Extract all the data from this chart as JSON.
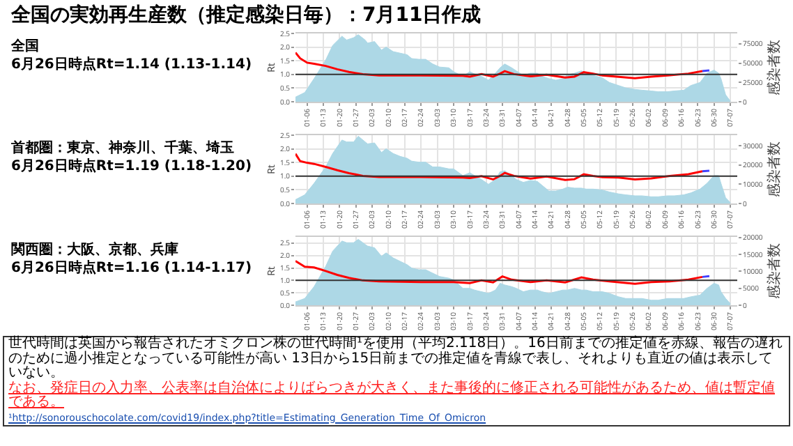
{
  "chart_data": [
    {
      "type": "area",
      "title": "全国の実効再生産数（推定感染日毎）：7月11日作成",
      "subtitle": "全国\n6月26日時点Rt=1.14 (1.13-1.14)",
      "ylabel": "Rt",
      "y2label": "感染者数",
      "grid": true,
      "xlim": [
        "--01-01",
        "--07-10"
      ],
      "xticks": [
        {
          "value": "--01-06",
          "label": "01-06"
        },
        {
          "value": "--01-13",
          "label": "01-13"
        },
        {
          "value": "--01-20",
          "label": "01-20"
        },
        {
          "value": "--01-27",
          "label": "01-27"
        },
        {
          "value": "--02-03",
          "label": "02-03"
        },
        {
          "value": "--02-10",
          "label": "02-10"
        },
        {
          "value": "--02-17",
          "label": "02-17"
        },
        {
          "value": "--02-24",
          "label": "02-24"
        },
        {
          "value": "--03-03",
          "label": "03-03"
        },
        {
          "value": "--03-10",
          "label": "03-10"
        },
        {
          "value": "--03-17",
          "label": "03-17"
        },
        {
          "value": "--03-24",
          "label": "03-24"
        },
        {
          "value": "--03-31",
          "label": "03-31"
        },
        {
          "value": "--04-07",
          "label": "04-07"
        },
        {
          "value": "--04-14",
          "label": "04-14"
        },
        {
          "value": "--04-21",
          "label": "04-21"
        },
        {
          "value": "--04-28",
          "label": "04-28"
        },
        {
          "value": "--05-05",
          "label": "05-05"
        },
        {
          "value": "--05-12",
          "label": "05-12"
        },
        {
          "value": "--05-19",
          "label": "05-19"
        },
        {
          "value": "--05-26",
          "label": "05-26"
        },
        {
          "value": "--06-02",
          "label": "06-02"
        },
        {
          "value": "--06-09",
          "label": "06-09"
        },
        {
          "value": "--06-16",
          "label": "06-16"
        },
        {
          "value": "--06-23",
          "label": "06-23"
        },
        {
          "value": "--06-30",
          "label": "06-30"
        },
        {
          "value": "--07-07",
          "label": "07-07"
        }
      ],
      "ylim": [
        0,
        2.5
      ],
      "yticks": [
        {
          "value": 0,
          "label": "0.0"
        },
        {
          "value": 0.5,
          "label": "0.5"
        },
        {
          "value": 1,
          "label": "1.0"
        },
        {
          "value": 1.5,
          "label": "1.5"
        },
        {
          "value": 2,
          "label": "2.0"
        },
        {
          "value": 2.5,
          "label": "2.5"
        }
      ],
      "y2lim": [
        0,
        88500
      ],
      "y2ticks": [
        0,
        25000,
        50000,
        75000
      ],
      "ref_lines": [
        {
          "axis": "y",
          "value": 1,
          "color": "#333333"
        }
      ],
      "series": [
        {
          "type": "area",
          "axis": "y2",
          "color": "#add8e6",
          "x": [
            "--01-01",
            "--01-05",
            "--01-09",
            "--01-14",
            "--01-17",
            "--01-21",
            "--01-23",
            "--01-26",
            "--01-28",
            "--01-31",
            "--02-01",
            "--02-04",
            "--02-07",
            "--02-09",
            "--02-12",
            "--02-15",
            "--02-18",
            "--02-20",
            "--02-23",
            "--02-26",
            "--03-01",
            "--03-04",
            "--03-08",
            "--03-10",
            "--03-14",
            "--03-17",
            "--03-19",
            "--03-22",
            "--03-25",
            "--03-28",
            "--03-30",
            "--04-01",
            "--04-04",
            "--04-06",
            "--04-09",
            "--04-12",
            "--04-15",
            "--04-17",
            "--04-20",
            "--04-23",
            "--04-26",
            "--04-28",
            "--05-01",
            "--05-04",
            "--05-06",
            "--05-09",
            "--05-13",
            "--05-16",
            "--05-20",
            "--05-23",
            "--05-27",
            "--05-30",
            "--06-03",
            "--06-06",
            "--06-10",
            "--06-13",
            "--06-17",
            "--06-20",
            "--06-24",
            "--06-27",
            "--06-30",
            "--07-02",
            "--07-03",
            "--07-05",
            "--07-07"
          ],
          "values": [
            6000,
            12000,
            30000,
            54000,
            73000,
            85000,
            80000,
            83000,
            87000,
            80000,
            76000,
            78000,
            67000,
            71000,
            65000,
            63000,
            61000,
            56000,
            55000,
            55000,
            49000,
            45000,
            44000,
            39000,
            33000,
            39000,
            36000,
            33000,
            28000,
            37000,
            44000,
            49000,
            44000,
            40000,
            34000,
            37000,
            37000,
            33000,
            30000,
            28000,
            30000,
            35000,
            37000,
            40000,
            37000,
            34000,
            31000,
            25000,
            21000,
            18000,
            16000,
            15000,
            14000,
            13000,
            13000,
            14000,
            15000,
            21000,
            25000,
            37000,
            41000,
            37000,
            30000,
            9000,
            1000
          ]
        },
        {
          "type": "line",
          "axis": "y",
          "color": "#ff0000",
          "x": [
            "--01-01",
            "--01-03",
            "--01-06",
            "--01-09",
            "--01-14",
            "--01-19",
            "--01-24",
            "--01-30",
            "--02-06",
            "--02-24",
            "--03-14",
            "--03-17",
            "--03-22",
            "--03-27",
            "--03-30",
            "--04-01",
            "--04-05",
            "--04-12",
            "--04-19",
            "--04-27",
            "--05-01",
            "--05-05",
            "--05-09",
            "--05-13",
            "--05-20",
            "--05-27",
            "--06-03",
            "--06-11",
            "--06-19",
            "--06-25"
          ],
          "values": [
            1.8,
            1.59,
            1.43,
            1.39,
            1.31,
            1.19,
            1.09,
            1.01,
            0.96,
            0.96,
            0.95,
            0.92,
            1.01,
            0.92,
            1.03,
            1.12,
            1.01,
            0.93,
            0.99,
            0.89,
            0.92,
            1.08,
            1.03,
            0.96,
            0.91,
            0.86,
            0.92,
            0.97,
            1.03,
            1.12
          ]
        },
        {
          "type": "line",
          "axis": "y",
          "color": "#4040ff",
          "x": [
            "--06-25",
            "--06-28"
          ],
          "values": [
            1.12,
            1.15
          ]
        }
      ]
    },
    {
      "type": "area",
      "subtitle": "首都圏：東京、神奈川、千葉、埼玉\n6月26日時点Rt=1.19 (1.18-1.20)",
      "ylabel": "Rt",
      "y2label": "感染者数",
      "grid": true,
      "xlim": [
        "--01-01",
        "--07-10"
      ],
      "xticks": [
        {
          "value": "--01-06",
          "label": "01-06"
        },
        {
          "value": "--01-13",
          "label": "01-13"
        },
        {
          "value": "--01-20",
          "label": "01-20"
        },
        {
          "value": "--01-27",
          "label": "01-27"
        },
        {
          "value": "--02-03",
          "label": "02-03"
        },
        {
          "value": "--02-10",
          "label": "02-10"
        },
        {
          "value": "--02-17",
          "label": "02-17"
        },
        {
          "value": "--02-24",
          "label": "02-24"
        },
        {
          "value": "--03-03",
          "label": "03-03"
        },
        {
          "value": "--03-10",
          "label": "03-10"
        },
        {
          "value": "--03-17",
          "label": "03-17"
        },
        {
          "value": "--03-24",
          "label": "03-24"
        },
        {
          "value": "--03-31",
          "label": "03-31"
        },
        {
          "value": "--04-07",
          "label": "04-07"
        },
        {
          "value": "--04-14",
          "label": "04-14"
        },
        {
          "value": "--04-21",
          "label": "04-21"
        },
        {
          "value": "--04-28",
          "label": "04-28"
        },
        {
          "value": "--05-05",
          "label": "05-05"
        },
        {
          "value": "--05-12",
          "label": "05-12"
        },
        {
          "value": "--05-19",
          "label": "05-19"
        },
        {
          "value": "--05-26",
          "label": "05-26"
        },
        {
          "value": "--06-02",
          "label": "06-02"
        },
        {
          "value": "--06-09",
          "label": "06-09"
        },
        {
          "value": "--06-16",
          "label": "06-16"
        },
        {
          "value": "--06-23",
          "label": "06-23"
        },
        {
          "value": "--06-30",
          "label": "06-30"
        },
        {
          "value": "--07-07",
          "label": "07-07"
        }
      ],
      "ylim": [
        0,
        2.5
      ],
      "yticks": [
        {
          "value": 0,
          "label": "0.0"
        },
        {
          "value": 0.5,
          "label": "0.5"
        },
        {
          "value": 1,
          "label": "1.0"
        },
        {
          "value": 1.5,
          "label": "1.5"
        },
        {
          "value": 2,
          "label": "2.0"
        },
        {
          "value": 2.5,
          "label": "2.5"
        }
      ],
      "y2lim": [
        0,
        35500
      ],
      "y2ticks": [
        0,
        10000,
        20000,
        30000
      ],
      "ref_lines": [
        {
          "axis": "y",
          "value": 1,
          "color": "#333333"
        }
      ],
      "series": [
        {
          "type": "area",
          "axis": "y2",
          "color": "#add8e6",
          "x": [
            "--01-01",
            "--01-05",
            "--01-09",
            "--01-14",
            "--01-17",
            "--01-21",
            "--01-23",
            "--01-26",
            "--01-28",
            "--01-31",
            "--02-01",
            "--02-04",
            "--02-07",
            "--02-09",
            "--02-12",
            "--02-15",
            "--02-18",
            "--02-20",
            "--02-23",
            "--02-26",
            "--03-01",
            "--03-04",
            "--03-08",
            "--03-10",
            "--03-14",
            "--03-17",
            "--03-19",
            "--03-22",
            "--03-25",
            "--03-28",
            "--03-30",
            "--04-01",
            "--04-04",
            "--04-06",
            "--04-09",
            "--04-12",
            "--04-15",
            "--04-17",
            "--04-20",
            "--04-23",
            "--04-26",
            "--04-28",
            "--05-01",
            "--05-04",
            "--05-06",
            "--05-09",
            "--05-13",
            "--05-16",
            "--05-20",
            "--05-23",
            "--05-27",
            "--05-30",
            "--06-03",
            "--06-06",
            "--06-10",
            "--06-13",
            "--06-17",
            "--06-20",
            "--06-24",
            "--06-27",
            "--06-30",
            "--07-02",
            "--07-03",
            "--07-05",
            "--07-07"
          ],
          "values": [
            2000,
            4500,
            10500,
            19000,
            26000,
            33000,
            32000,
            32000,
            35000,
            32000,
            31000,
            31500,
            26500,
            28500,
            26000,
            24500,
            23500,
            22000,
            21500,
            21500,
            19000,
            19000,
            18000,
            18000,
            14500,
            16000,
            14500,
            12500,
            10000,
            12500,
            16500,
            17000,
            14500,
            12500,
            11000,
            12000,
            11500,
            9500,
            6500,
            6500,
            7500,
            8500,
            8000,
            8000,
            7500,
            7500,
            7000,
            6000,
            5000,
            4500,
            4000,
            4000,
            3500,
            3500,
            4000,
            4000,
            4500,
            5500,
            7500,
            10500,
            14500,
            14500,
            10500,
            3000,
            500
          ]
        },
        {
          "type": "line",
          "axis": "y",
          "color": "#ff0000",
          "x": [
            "--01-01",
            "--01-03",
            "--01-06",
            "--01-09",
            "--01-14",
            "--01-19",
            "--01-24",
            "--01-30",
            "--02-06",
            "--02-24",
            "--03-14",
            "--03-17",
            "--03-22",
            "--03-27",
            "--03-30",
            "--04-01",
            "--04-05",
            "--04-12",
            "--04-19",
            "--04-27",
            "--05-01",
            "--05-05",
            "--05-09",
            "--05-13",
            "--05-20",
            "--05-27",
            "--06-03",
            "--06-11",
            "--06-19",
            "--06-25"
          ],
          "values": [
            1.82,
            1.55,
            1.49,
            1.45,
            1.34,
            1.22,
            1.11,
            1.01,
            0.97,
            0.97,
            0.95,
            0.93,
            1.0,
            0.88,
            1.01,
            1.12,
            1.01,
            0.91,
            0.99,
            0.86,
            0.89,
            1.07,
            1.01,
            0.96,
            0.95,
            0.88,
            0.92,
            1.01,
            1.07,
            1.18
          ]
        },
        {
          "type": "line",
          "axis": "y",
          "color": "#4040ff",
          "x": [
            "--06-25",
            "--06-28"
          ],
          "values": [
            1.18,
            1.2
          ]
        }
      ]
    },
    {
      "type": "area",
      "subtitle": "関西圏：大阪、京都、兵庫\n6月26日時点Rt=1.16 (1.14-1.17)",
      "ylabel": "Rt",
      "y2label": "感染者数",
      "grid": true,
      "xlim": [
        "--01-01",
        "--07-10"
      ],
      "xticks": [
        {
          "value": "--01-06",
          "label": "01-06"
        },
        {
          "value": "--01-13",
          "label": "01-13"
        },
        {
          "value": "--01-20",
          "label": "01-20"
        },
        {
          "value": "--01-27",
          "label": "01-27"
        },
        {
          "value": "--02-03",
          "label": "02-03"
        },
        {
          "value": "--02-10",
          "label": "02-10"
        },
        {
          "value": "--02-17",
          "label": "02-17"
        },
        {
          "value": "--02-24",
          "label": "02-24"
        },
        {
          "value": "--03-03",
          "label": "03-03"
        },
        {
          "value": "--03-10",
          "label": "03-10"
        },
        {
          "value": "--03-17",
          "label": "03-17"
        },
        {
          "value": "--03-24",
          "label": "03-24"
        },
        {
          "value": "--03-31",
          "label": "03-31"
        },
        {
          "value": "--04-07",
          "label": "04-07"
        },
        {
          "value": "--04-14",
          "label": "04-14"
        },
        {
          "value": "--04-21",
          "label": "04-21"
        },
        {
          "value": "--04-28",
          "label": "04-28"
        },
        {
          "value": "--05-05",
          "label": "05-05"
        },
        {
          "value": "--05-12",
          "label": "05-12"
        },
        {
          "value": "--05-19",
          "label": "05-19"
        },
        {
          "value": "--05-26",
          "label": "05-26"
        },
        {
          "value": "--06-02",
          "label": "06-02"
        },
        {
          "value": "--06-09",
          "label": "06-09"
        },
        {
          "value": "--06-16",
          "label": "06-16"
        },
        {
          "value": "--06-23",
          "label": "06-23"
        },
        {
          "value": "--06-30",
          "label": "06-30"
        },
        {
          "value": "--07-07",
          "label": "07-07"
        }
      ],
      "ylim": [
        0,
        2.75
      ],
      "yticks": [
        {
          "value": 0,
          "label": "0.0"
        },
        {
          "value": 0.5,
          "label": "0.5"
        },
        {
          "value": 1,
          "label": "1.0"
        },
        {
          "value": 1.5,
          "label": "1.5"
        },
        {
          "value": 2,
          "label": "2.0"
        },
        {
          "value": 2.5,
          "label": "2.5"
        }
      ],
      "y2lim": [
        0,
        20200
      ],
      "y2ticks": [
        0,
        5000,
        10000,
        15000,
        20000
      ],
      "ref_lines": [
        {
          "axis": "y",
          "value": 1,
          "color": "#333333"
        }
      ],
      "series": [
        {
          "type": "area",
          "axis": "y2",
          "color": "#add8e6",
          "x": [
            "--01-01",
            "--01-05",
            "--01-09",
            "--01-14",
            "--01-17",
            "--01-21",
            "--01-23",
            "--01-26",
            "--01-28",
            "--01-31",
            "--02-01",
            "--02-04",
            "--02-07",
            "--02-09",
            "--02-12",
            "--02-15",
            "--02-18",
            "--02-20",
            "--02-23",
            "--02-26",
            "--03-01",
            "--03-04",
            "--03-08",
            "--03-10",
            "--03-14",
            "--03-17",
            "--03-19",
            "--03-22",
            "--03-25",
            "--03-28",
            "--03-30",
            "--04-01",
            "--04-04",
            "--04-06",
            "--04-09",
            "--04-12",
            "--04-15",
            "--04-17",
            "--04-20",
            "--04-23",
            "--04-26",
            "--04-28",
            "--05-01",
            "--05-04",
            "--05-06",
            "--05-09",
            "--05-13",
            "--05-16",
            "--05-20",
            "--05-23",
            "--05-27",
            "--05-30",
            "--06-03",
            "--06-06",
            "--06-10",
            "--06-13",
            "--06-17",
            "--06-20",
            "--06-24",
            "--06-27",
            "--06-30",
            "--07-02",
            "--07-03",
            "--07-05",
            "--07-07"
          ],
          "values": [
            1000,
            2000,
            5500,
            11500,
            16000,
            19000,
            18500,
            18500,
            19500,
            18000,
            17500,
            17000,
            14500,
            15500,
            14000,
            13000,
            12000,
            11000,
            10500,
            10500,
            9500,
            8500,
            8000,
            7500,
            5000,
            5000,
            4500,
            4000,
            3500,
            4500,
            6500,
            6000,
            5500,
            5000,
            4000,
            4500,
            4500,
            4000,
            3500,
            4000,
            4500,
            4500,
            5000,
            4500,
            4500,
            4000,
            4000,
            3500,
            2500,
            2000,
            2000,
            2000,
            1500,
            1500,
            2000,
            2000,
            2000,
            2500,
            3000,
            5000,
            6500,
            6000,
            4000,
            2000,
            500
          ]
        },
        {
          "type": "line",
          "axis": "y",
          "color": "#ff0000",
          "x": [
            "--01-01",
            "--01-05",
            "--01-09",
            "--01-14",
            "--01-19",
            "--01-24",
            "--01-30",
            "--02-06",
            "--02-24",
            "--03-10",
            "--03-17",
            "--03-22",
            "--03-27",
            "--03-31",
            "--04-04",
            "--04-12",
            "--04-19",
            "--04-27",
            "--05-04",
            "--05-09",
            "--05-16",
            "--05-27",
            "--06-03",
            "--06-11",
            "--06-19",
            "--06-25"
          ],
          "values": [
            1.78,
            1.55,
            1.52,
            1.38,
            1.22,
            1.1,
            1.0,
            0.96,
            0.93,
            0.93,
            0.89,
            1.0,
            0.92,
            1.16,
            1.03,
            0.93,
            1.0,
            0.92,
            1.12,
            1.03,
            0.96,
            0.86,
            0.93,
            0.96,
            1.03,
            1.14
          ]
        },
        {
          "type": "line",
          "axis": "y",
          "color": "#4040ff",
          "x": [
            "--06-25",
            "--06-28"
          ],
          "values": [
            1.14,
            1.17
          ]
        }
      ],
      "annotations": [
        "世代時間は英国から報告されたオミクロン株の世代時間¹を使用（平均2.118日）。16日前までの推定値を赤線、報告の遅れのために過小推定となっている可能性が高い 13日から15日前までの推定値を青線で表し、それよりも直近の値は表示していない。",
        "なお、発症日の入力率、公表率は自治体によりばらつきが大きく、また事後的に修正される可能性があるため、値は暫定値である。",
        "¹http://sonorouschocolate.com/covid19/index.php?title=Estimating_Generation_Time_Of_Omicron"
      ]
    }
  ]
}
